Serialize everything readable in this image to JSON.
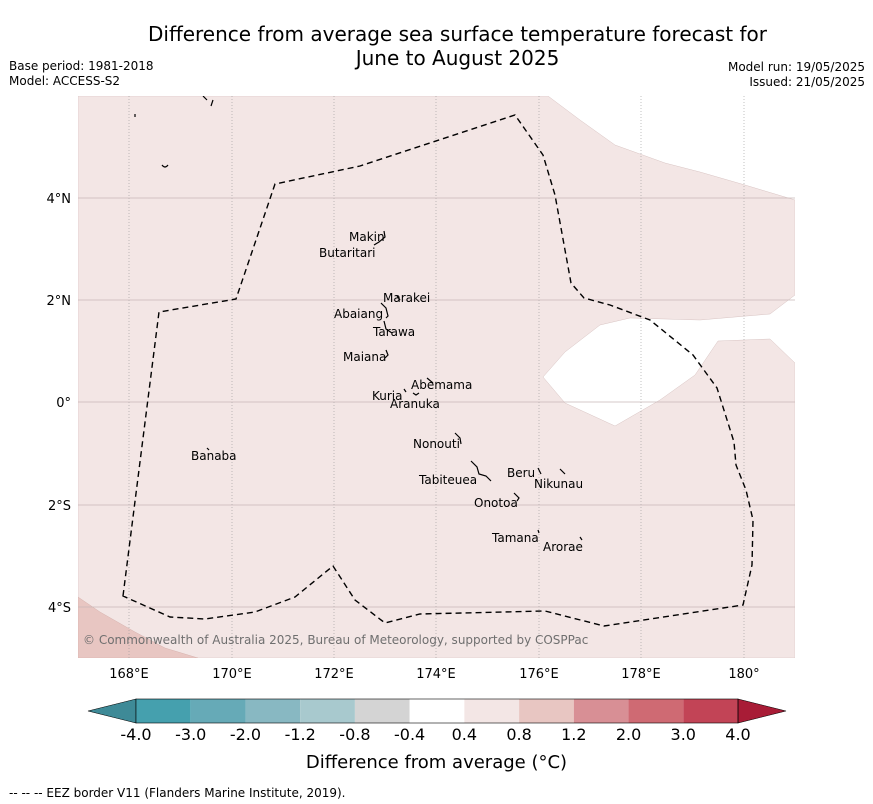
{
  "title_line1": "Difference from average sea surface temperature forecast for",
  "title_line2": "June to August 2025",
  "meta": {
    "base_period": "Base period: 1981-2018",
    "model": "Model: ACCESS-S2",
    "model_run": "Model run: 19/05/2025",
    "issued": "Issued: 21/05/2025"
  },
  "axes": {
    "lon_ticks": [
      "168°E",
      "170°E",
      "172°E",
      "174°E",
      "176°E",
      "178°E",
      "180°"
    ],
    "lat_ticks": [
      "4°N",
      "2°N",
      "0°",
      "2°S",
      "4°S"
    ]
  },
  "islands": [
    {
      "name": "Makin"
    },
    {
      "name": "Butaritari"
    },
    {
      "name": "Marakei"
    },
    {
      "name": "Abaiang"
    },
    {
      "name": "Tarawa"
    },
    {
      "name": "Maiana"
    },
    {
      "name": "Abemama"
    },
    {
      "name": "Kuria"
    },
    {
      "name": "Aranuka"
    },
    {
      "name": "Nonouti"
    },
    {
      "name": "Banaba"
    },
    {
      "name": "Tabiteuea"
    },
    {
      "name": "Beru"
    },
    {
      "name": "Nikunau"
    },
    {
      "name": "Onotoa"
    },
    {
      "name": "Tamana"
    },
    {
      "name": "Arorae"
    }
  ],
  "copyright": "© Commonwealth of Australia 2025, Bureau of Meteorology, supported by COSPPac",
  "colorbar": {
    "labels": [
      "-4.0",
      "-3.0",
      "-2.0",
      "-1.2",
      "-0.8",
      "-0.4",
      "0.4",
      "0.8",
      "1.2",
      "2.0",
      "3.0",
      "4.0"
    ],
    "colors": [
      "#3e8a97",
      "#45a0ae",
      "#66aab7",
      "#88b8c2",
      "#a8c9ce",
      "#d4d4d4",
      "#ffffff",
      "#f3e6e5",
      "#e8c6c2",
      "#d88f95",
      "#cf6a73",
      "#c24456",
      "#a81c36"
    ],
    "title": "Difference from average (°C)"
  },
  "footnote": "--  --  -- EEZ border V11 (Flanders Marine Institute, 2019)."
}
